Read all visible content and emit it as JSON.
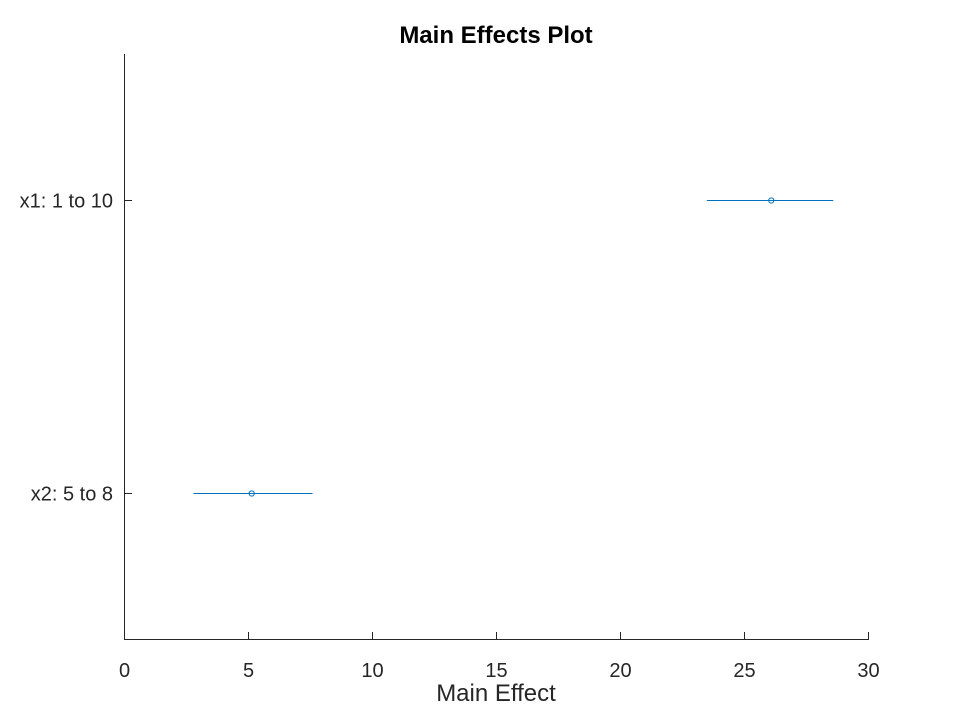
{
  "chart_data": {
    "type": "scatter",
    "title": "Main Effects Plot",
    "xlabel": "Main Effect",
    "ylabel": "",
    "xlim": [
      0,
      30
    ],
    "xticks": [
      0,
      5,
      10,
      15,
      20,
      25,
      30
    ],
    "grid": false,
    "color": "#0072BD",
    "factors": [
      {
        "label": "x1: 1 to 10",
        "effect": 26.1,
        "lower": 23.5,
        "upper": 28.6
      },
      {
        "label": "x2: 5 to 8",
        "effect": 5.15,
        "lower": 2.8,
        "upper": 7.6
      }
    ]
  }
}
